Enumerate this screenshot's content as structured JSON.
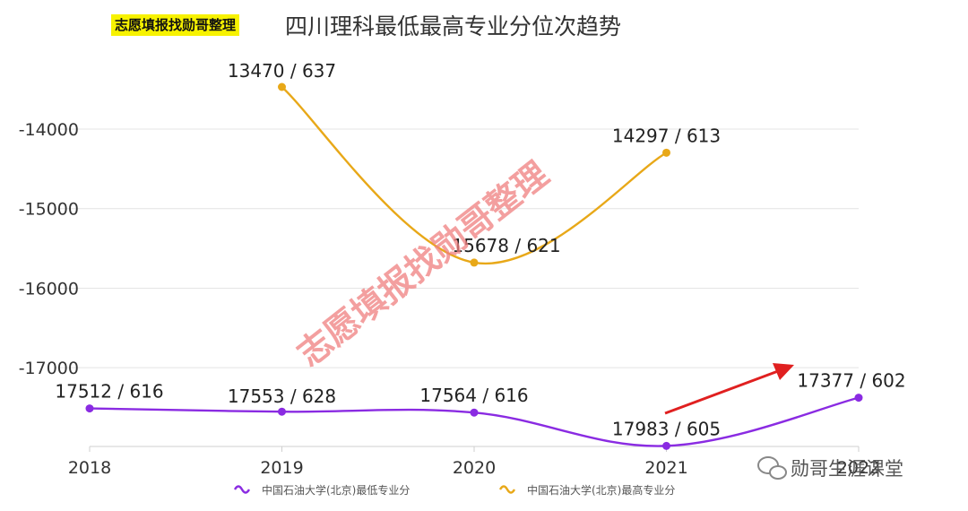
{
  "header": {
    "tag": "志愿填报找勋哥整理",
    "title": "四川理科最低最高专业分位次趋势"
  },
  "watermark": "志愿填报找勋哥整理",
  "wechat_brand": "勋哥生涯课堂",
  "chart_data": {
    "type": "line",
    "title": "四川理科最低最高专业分位次趋势",
    "categories": [
      "2018",
      "2019",
      "2020",
      "2021",
      "2022"
    ],
    "x_tick_labels": [
      "2018",
      "2019",
      "2020",
      "2021",
      "2022"
    ],
    "y_ticks": [
      -14000,
      -15000,
      -16000,
      -17000
    ],
    "y_tick_labels": [
      "-14000",
      "-15000",
      "-16000",
      "-17000"
    ],
    "ylim": [
      -17990,
      -13470
    ],
    "grid": true,
    "legend_position": "bottom",
    "series": [
      {
        "name": "中国石油大学(北京)最低专业分",
        "color": "#8a2be2",
        "points": [
          {
            "x": "2018",
            "y": -17512,
            "label": "17512 / 616"
          },
          {
            "x": "2019",
            "y": -17553,
            "label": "17553 / 628"
          },
          {
            "x": "2020",
            "y": -17564,
            "label": "17564 / 616"
          },
          {
            "x": "2021",
            "y": -17983,
            "label": "17983 / 605"
          },
          {
            "x": "2022",
            "y": -17377,
            "label": "17377 / 602"
          }
        ]
      },
      {
        "name": "中国石油大学(北京)最高专业分",
        "color": "#e8a818",
        "points": [
          {
            "x": "2019",
            "y": -13470,
            "label": "13470 / 637"
          },
          {
            "x": "2020",
            "y": -15678,
            "label": "15678 / 621"
          },
          {
            "x": "2021",
            "y": -14297,
            "label": "14297 / 613"
          }
        ]
      }
    ],
    "annotation_arrow_color": "#e02020"
  }
}
